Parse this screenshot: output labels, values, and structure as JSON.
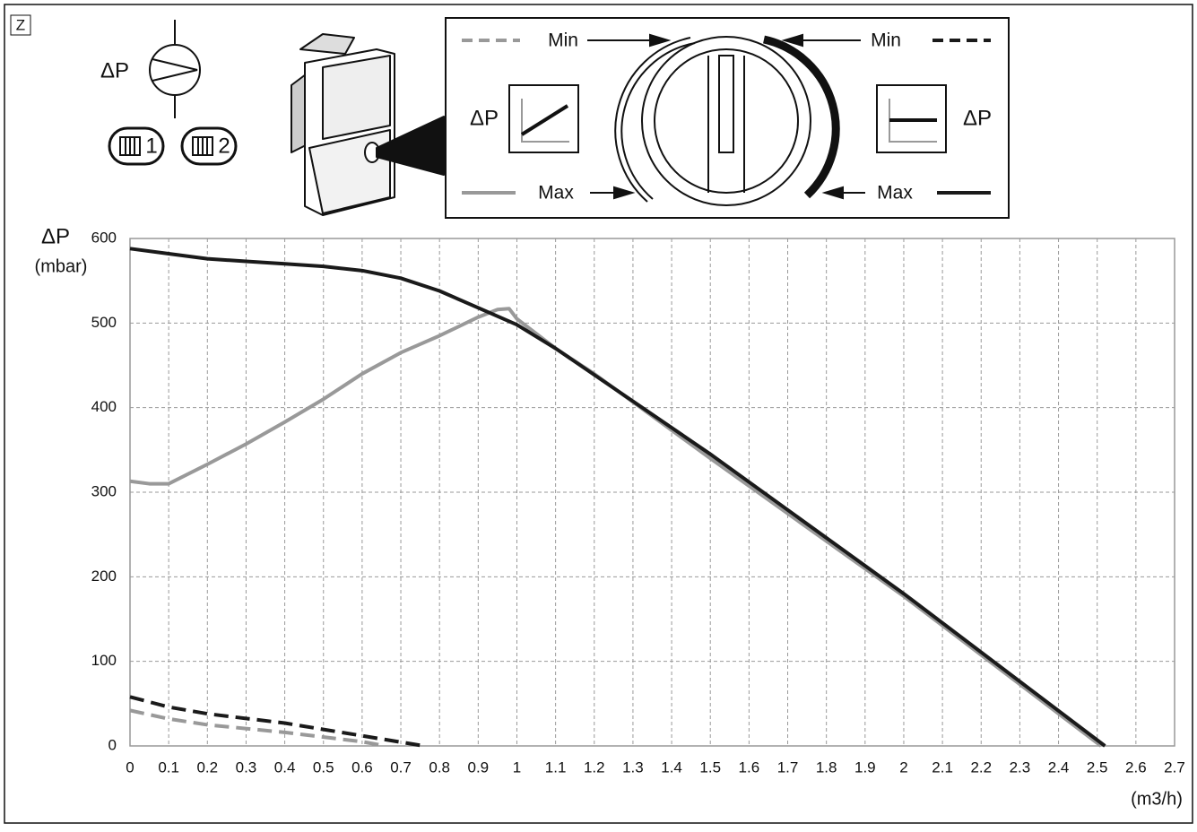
{
  "chart_data": {
    "type": "line",
    "ylabel": "ΔP",
    "yunit": "(mbar)",
    "xunit": "(m3/h)",
    "xlim": [
      0,
      2.7
    ],
    "ylim": [
      0,
      600
    ],
    "xticks": [
      0,
      0.1,
      0.2,
      0.3,
      0.4,
      0.5,
      0.6,
      0.7,
      0.8,
      0.9,
      1,
      1.1,
      1.2,
      1.3,
      1.4,
      1.5,
      1.6,
      1.7,
      1.8,
      1.9,
      2,
      2.1,
      2.2,
      2.3,
      2.4,
      2.5,
      2.6,
      2.7
    ],
    "yticks": [
      0,
      100,
      200,
      300,
      400,
      500,
      600
    ],
    "grid": true,
    "series": [
      {
        "name": "Min",
        "color": "#999999",
        "style": "dashed",
        "x": [
          0,
          0.1,
          0.2,
          0.4,
          0.6,
          0.66
        ],
        "values": [
          42,
          32,
          25,
          16,
          5,
          0
        ]
      },
      {
        "name": "Max",
        "color": "#999999",
        "style": "solid",
        "x": [
          0,
          0.05,
          0.1,
          0.2,
          0.3,
          0.4,
          0.5,
          0.6,
          0.7,
          0.8,
          0.9,
          0.95,
          0.98,
          1.0,
          1.1,
          1.2,
          1.5,
          2.0,
          2.51
        ],
        "values": [
          313,
          310,
          310,
          333,
          357,
          383,
          410,
          440,
          465,
          485,
          507,
          516,
          517,
          505,
          470,
          440,
          340,
          177,
          0
        ]
      },
      {
        "name": "Min",
        "color": "#1a1a1a",
        "style": "dashed",
        "x": [
          0,
          0.1,
          0.2,
          0.4,
          0.6,
          0.76
        ],
        "values": [
          58,
          46,
          38,
          27,
          12,
          0
        ]
      },
      {
        "name": "Max",
        "color": "#1a1a1a",
        "style": "solid",
        "x": [
          0,
          0.1,
          0.2,
          0.3,
          0.4,
          0.5,
          0.6,
          0.7,
          0.8,
          0.9,
          1.0,
          1.1,
          1.5,
          2.0,
          2.52
        ],
        "values": [
          588,
          582,
          576,
          573,
          570,
          567,
          562,
          553,
          538,
          518,
          498,
          470,
          345,
          180,
          0
        ]
      }
    ]
  },
  "diagram": {
    "panel_label": "Z",
    "pump_label": "ΔP",
    "circuits": [
      "1",
      "2"
    ],
    "dial_left_label": "ΔP",
    "dial_right_label": "ΔP"
  }
}
